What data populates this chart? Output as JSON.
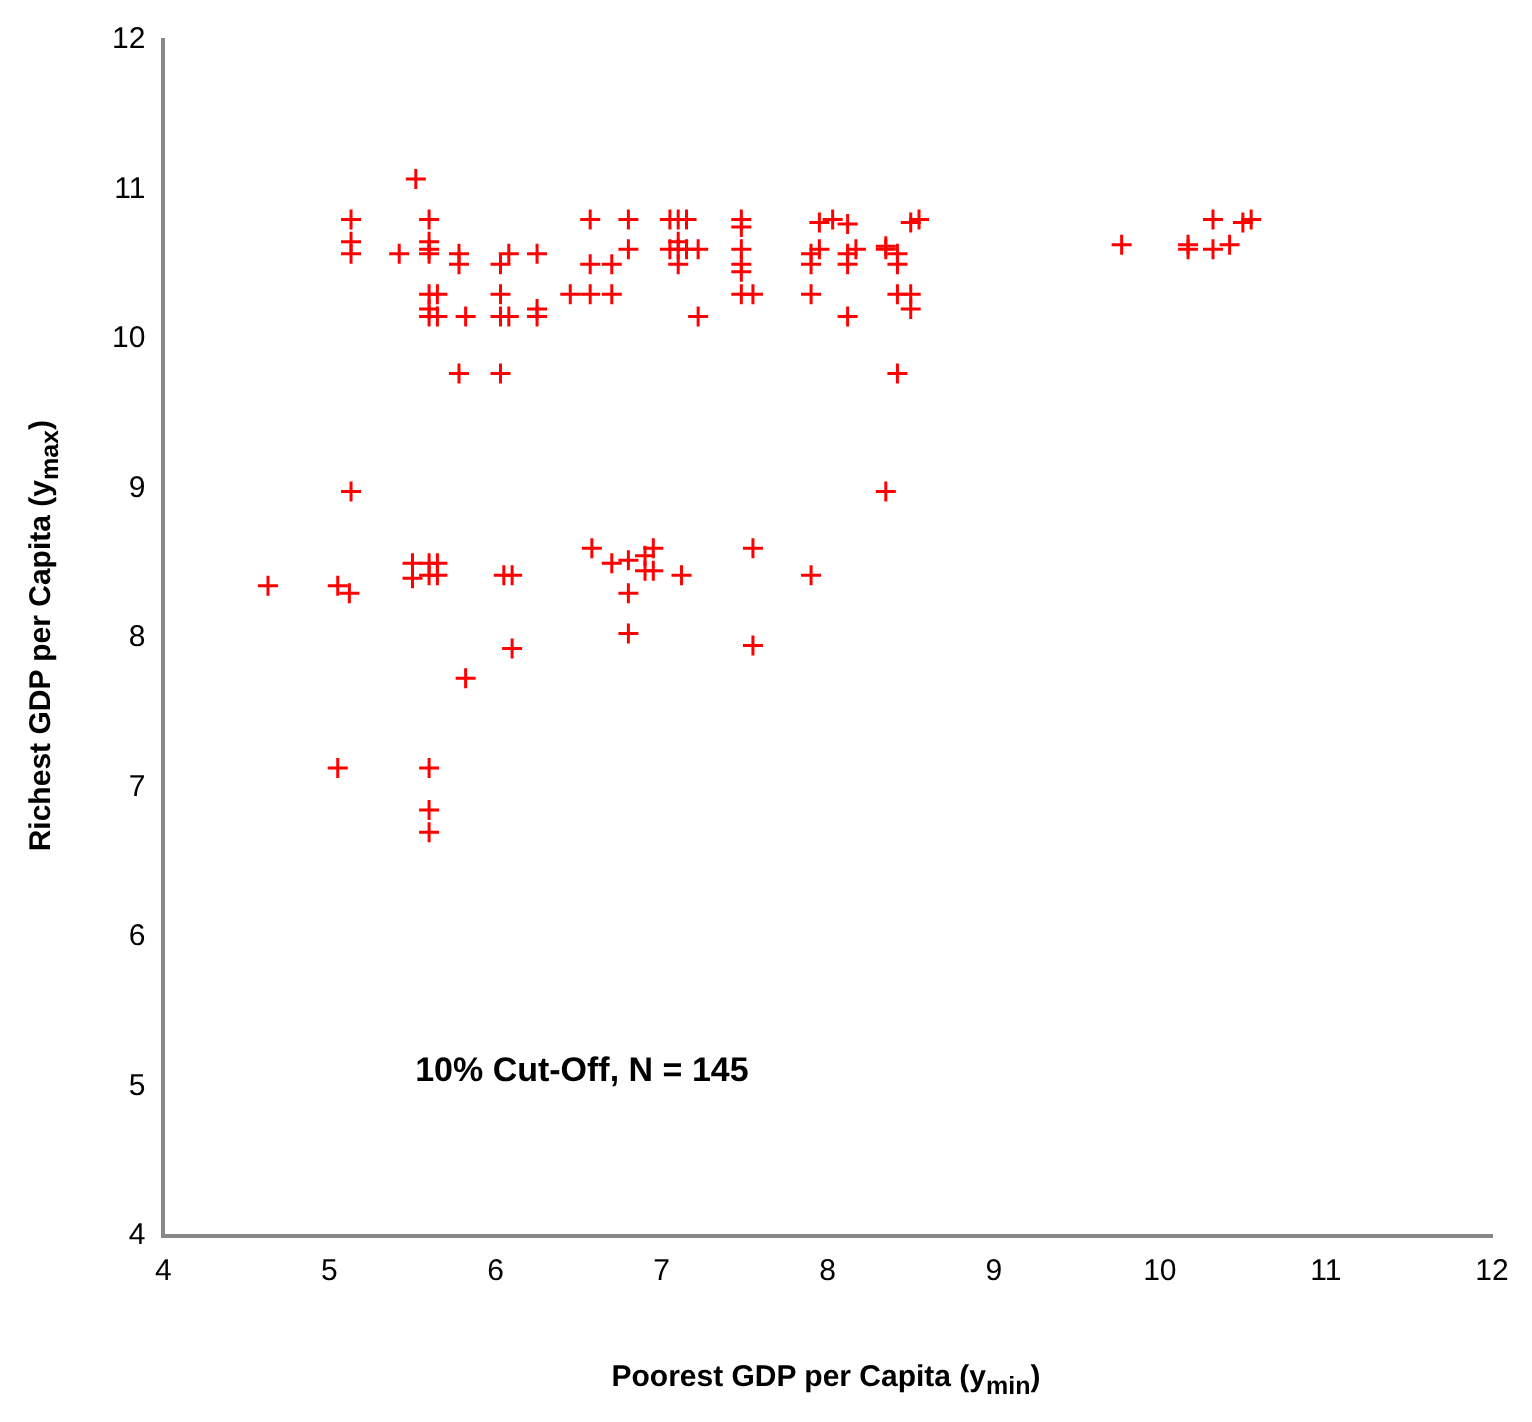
{
  "chart_data": {
    "type": "scatter",
    "xlabel": "Poorest GDP per Capita (y$_{min}$)",
    "ylabel": "Richest GDP per Capita (y$_{max}$)",
    "annotations": [
      "10% Cut-Off, N = 145"
    ],
    "marker": "cross",
    "grid": false,
    "legend": false,
    "xlim": [
      4,
      12
    ],
    "ylim": [
      4,
      12
    ],
    "xticks": [
      4,
      5,
      6,
      7,
      8,
      9,
      10,
      11,
      12
    ],
    "yticks": [
      4,
      5,
      6,
      7,
      8,
      9,
      10,
      11,
      12
    ],
    "series": [
      {
        "color": "#ff0000",
        "x": [
          5.52,
          5.13,
          5.13,
          5.13,
          5.42,
          5.6,
          5.6,
          5.6,
          5.6,
          5.6,
          5.6,
          5.6,
          5.65,
          5.65,
          5.78,
          5.78,
          5.78,
          5.82,
          6.03,
          6.03,
          6.03,
          6.03,
          6.08,
          6.08,
          6.25,
          6.25,
          6.25,
          6.45,
          6.57,
          6.57,
          6.57,
          6.7,
          6.7,
          6.8,
          6.8,
          7.05,
          7.05,
          7.1,
          7.1,
          7.1,
          7.1,
          7.15,
          7.15,
          7.22,
          7.22,
          7.48,
          7.48,
          7.48,
          7.48,
          7.48,
          7.48,
          7.55,
          7.9,
          7.9,
          7.9,
          7.95,
          7.95,
          8.03,
          8.12,
          8.12,
          8.12,
          8.12,
          8.17,
          8.35,
          8.35,
          8.42,
          8.42,
          8.42,
          8.42,
          8.5,
          8.5,
          8.5,
          8.55,
          9.77,
          10.17,
          10.17,
          10.32,
          10.32,
          10.42,
          10.5,
          10.55,
          8.35,
          4.63,
          5.05,
          5.05,
          5.12,
          5.13,
          5.5,
          5.5,
          5.6,
          5.6,
          5.6,
          5.6,
          5.6,
          5.65,
          5.65,
          5.82,
          6.05,
          6.1,
          6.1,
          6.58,
          6.7,
          6.8,
          6.8,
          6.8,
          6.9,
          6.9,
          6.95,
          6.95,
          7.12,
          7.55,
          7.55,
          7.9
        ],
        "values": [
          11.07,
          10.8,
          10.65,
          10.57,
          10.57,
          10.8,
          10.65,
          10.6,
          10.57,
          10.3,
          10.2,
          10.15,
          10.15,
          10.3,
          10.57,
          10.5,
          9.77,
          10.15,
          10.3,
          10.15,
          9.77,
          10.5,
          10.57,
          10.15,
          10.2,
          10.15,
          10.57,
          10.3,
          10.8,
          10.5,
          10.3,
          10.5,
          10.3,
          10.8,
          10.6,
          10.8,
          10.6,
          10.8,
          10.6,
          10.5,
          10.65,
          10.8,
          10.6,
          10.6,
          10.15,
          10.8,
          10.75,
          10.6,
          10.5,
          10.45,
          10.3,
          10.3,
          10.5,
          10.57,
          10.3,
          10.78,
          10.6,
          10.8,
          10.57,
          10.5,
          10.15,
          10.77,
          10.6,
          10.62,
          10.6,
          10.57,
          10.5,
          10.3,
          9.77,
          10.78,
          10.3,
          10.2,
          10.8,
          10.63,
          10.63,
          10.6,
          10.8,
          10.6,
          10.63,
          10.78,
          10.8,
          8.98,
          8.35,
          8.35,
          7.13,
          8.3,
          8.98,
          8.5,
          8.4,
          8.5,
          8.42,
          7.13,
          6.85,
          6.7,
          8.5,
          8.42,
          7.73,
          8.42,
          8.42,
          7.93,
          8.6,
          8.5,
          8.3,
          8.03,
          8.52,
          8.55,
          8.45,
          8.6,
          8.45,
          8.42,
          8.6,
          7.95,
          8.42
        ]
      }
    ]
  }
}
